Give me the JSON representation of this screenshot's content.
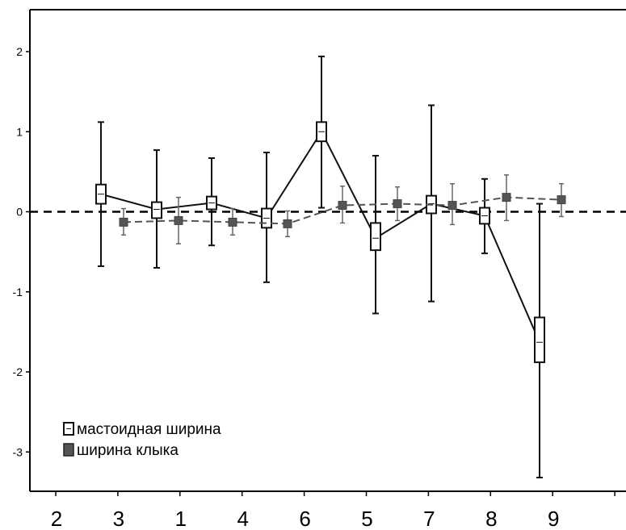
{
  "chart_data": {
    "type": "line",
    "categories": [
      "2",
      "3",
      "1",
      "4",
      "6",
      "5",
      "7",
      "8",
      "9"
    ],
    "yticks": [
      "2",
      "1",
      "0",
      "-1",
      "-2",
      "-3"
    ],
    "ylim": [
      -3.5,
      2.5
    ],
    "reference_line": 0,
    "grid": false,
    "legend_position": "bottom-left",
    "series": [
      {
        "name": "мастоидная ширина",
        "style": "solid",
        "marker": "hollow-box",
        "color": "#111111",
        "points": [
          {
            "category": "3",
            "mean": 0.22,
            "box_low": 0.1,
            "box_high": 0.34,
            "whisker_low": -0.68,
            "whisker_high": 1.12
          },
          {
            "category": "1",
            "mean": 0.03,
            "box_low": -0.08,
            "box_high": 0.12,
            "whisker_low": -0.7,
            "whisker_high": 0.77
          },
          {
            "category": "4",
            "mean": 0.11,
            "box_low": 0.03,
            "box_high": 0.19,
            "whisker_low": -0.42,
            "whisker_high": 0.67
          },
          {
            "category": "6",
            "mean": -0.08,
            "box_low": -0.2,
            "box_high": 0.04,
            "whisker_low": -0.88,
            "whisker_high": 0.74
          },
          {
            "category": "6",
            "mean": 1.0,
            "box_low": 0.88,
            "box_high": 1.12,
            "whisker_low": 0.05,
            "whisker_high": 1.94
          },
          {
            "category": "5",
            "mean": -0.33,
            "box_low": -0.48,
            "box_high": -0.14,
            "whisker_low": -1.27,
            "whisker_high": 0.7
          },
          {
            "category": "7",
            "mean": 0.1,
            "box_low": -0.02,
            "box_high": 0.2,
            "whisker_low": -1.12,
            "whisker_high": 1.33
          },
          {
            "category": "8",
            "mean": -0.05,
            "box_low": -0.15,
            "box_high": 0.05,
            "whisker_low": -0.52,
            "whisker_high": 0.41
          },
          {
            "category": "9",
            "mean": -1.63,
            "box_low": -1.88,
            "box_high": -1.32,
            "whisker_low": -3.32,
            "whisker_high": 0.1
          }
        ]
      },
      {
        "name": "ширина клыка",
        "style": "dashed",
        "marker": "filled-square",
        "color": "#555555",
        "points": [
          {
            "category": "3",
            "mean": -0.13,
            "whisker_low": -0.29,
            "whisker_high": 0.04
          },
          {
            "category": "1",
            "mean": -0.11,
            "whisker_low": -0.4,
            "whisker_high": 0.18
          },
          {
            "category": "4",
            "mean": -0.13,
            "whisker_low": -0.29,
            "whisker_high": 0.04
          },
          {
            "category": "6",
            "mean": -0.15,
            "whisker_low": -0.31,
            "whisker_high": 0.01
          },
          {
            "category": "5",
            "mean": 0.08,
            "whisker_low": -0.14,
            "whisker_high": 0.32
          },
          {
            "category": "5",
            "mean": 0.1,
            "whisker_low": -0.11,
            "whisker_high": 0.31
          },
          {
            "category": "7",
            "mean": 0.08,
            "whisker_low": -0.16,
            "whisker_high": 0.35
          },
          {
            "category": "8",
            "mean": 0.18,
            "whisker_low": -0.11,
            "whisker_high": 0.46
          },
          {
            "category": "9",
            "mean": 0.15,
            "whisker_low": -0.06,
            "whisker_high": 0.35
          }
        ]
      }
    ]
  }
}
